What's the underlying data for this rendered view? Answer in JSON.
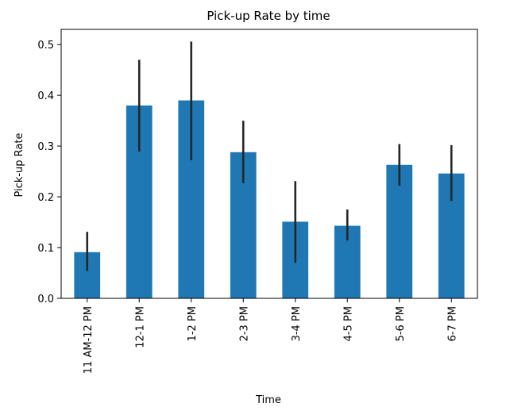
{
  "chart_data": {
    "type": "bar",
    "title": "Pick-up Rate by time",
    "xlabel": "Time",
    "ylabel": "Pick-up Rate",
    "categories": [
      "11 AM-12 PM",
      "12-1 PM",
      "1-2 PM",
      "2-3 PM",
      "3-4 PM",
      "4-5 PM",
      "5-6 PM",
      "6-7 PM"
    ],
    "values": [
      0.091,
      0.38,
      0.39,
      0.288,
      0.151,
      0.143,
      0.263,
      0.246
    ],
    "error_low": [
      0.054,
      0.289,
      0.272,
      0.227,
      0.07,
      0.114,
      0.222,
      0.192
    ],
    "error_high": [
      0.131,
      0.47,
      0.506,
      0.35,
      0.231,
      0.175,
      0.304,
      0.302
    ],
    "yticks": [
      "0.0",
      "0.1",
      "0.2",
      "0.3",
      "0.4",
      "0.5"
    ],
    "ylim": [
      0,
      0.53
    ],
    "grid": false,
    "colors": {
      "bar": "#1f77b4",
      "errorbar": "#262626",
      "axis": "#000000"
    }
  }
}
